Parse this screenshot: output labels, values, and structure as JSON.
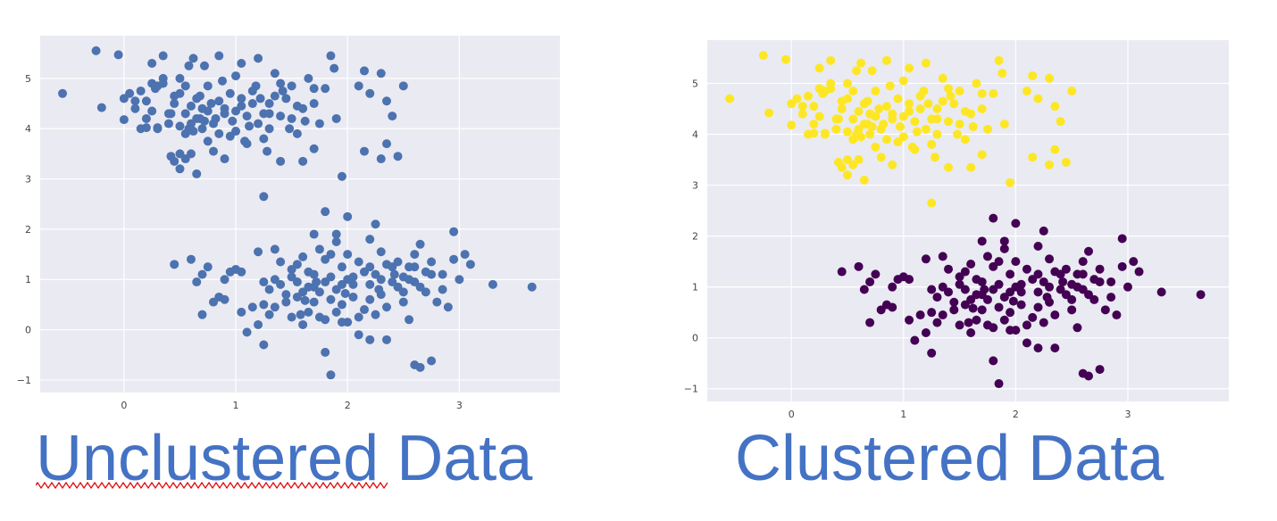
{
  "captions": {
    "left": "Unclustered Data",
    "right": "Clustered Data"
  },
  "colors": {
    "unclustered": "#4c72b0",
    "cluster_a": "#fde725",
    "cluster_b": "#440154",
    "plot_bg": "#eaeaf2",
    "grid": "#ffffff",
    "caption": "#4472c4",
    "spellcheck": "#e00000"
  },
  "chart_data": [
    {
      "type": "scatter",
      "title": "",
      "xlabel": "",
      "ylabel": "",
      "xlim": [
        -0.75,
        3.9
      ],
      "ylim": [
        -1.25,
        5.85
      ],
      "xticks": [
        0,
        1,
        2,
        3
      ],
      "yticks": [
        -1,
        0,
        1,
        2,
        3,
        4,
        5
      ],
      "tick_labels_x": [
        "0",
        "1",
        "2",
        "3"
      ],
      "tick_labels_y": [
        "−1",
        "0",
        "1",
        "2",
        "3",
        "4",
        "5"
      ],
      "grid": true,
      "series": [
        {
          "color": "#4c72b0",
          "points": [
            [
              -0.55,
              4.7
            ],
            [
              -0.25,
              5.55
            ],
            [
              -0.2,
              4.42
            ],
            [
              -0.05,
              5.47
            ],
            [
              0.0,
              4.18
            ],
            [
              0.0,
              4.6
            ],
            [
              0.05,
              4.7
            ],
            [
              0.1,
              4.4
            ],
            [
              0.1,
              4.55
            ],
            [
              0.15,
              4.0
            ],
            [
              0.2,
              4.02
            ],
            [
              0.2,
              4.2
            ],
            [
              0.2,
              4.55
            ],
            [
              0.25,
              5.3
            ],
            [
              0.25,
              4.9
            ],
            [
              0.28,
              4.8
            ],
            [
              0.3,
              4.85
            ],
            [
              0.3,
              4.02
            ],
            [
              0.3,
              4.0
            ],
            [
              0.35,
              5.45
            ],
            [
              0.35,
              4.9
            ],
            [
              0.4,
              4.3
            ],
            [
              0.4,
              4.1
            ],
            [
              0.42,
              3.45
            ],
            [
              0.45,
              3.35
            ],
            [
              0.45,
              4.5
            ],
            [
              0.5,
              5.0
            ],
            [
              0.5,
              4.7
            ],
            [
              0.5,
              4.05
            ],
            [
              0.5,
              3.2
            ],
            [
              0.55,
              3.4
            ],
            [
              0.55,
              4.3
            ],
            [
              0.55,
              3.9
            ],
            [
              0.58,
              5.25
            ],
            [
              0.6,
              4.45
            ],
            [
              0.6,
              4.1
            ],
            [
              0.6,
              3.5
            ],
            [
              0.62,
              5.4
            ],
            [
              0.65,
              4.6
            ],
            [
              0.65,
              4.2
            ],
            [
              0.65,
              3.1
            ],
            [
              0.7,
              4.4
            ],
            [
              0.7,
              4.0
            ],
            [
              0.72,
              5.25
            ],
            [
              0.75,
              4.85
            ],
            [
              0.75,
              4.35
            ],
            [
              0.8,
              4.1
            ],
            [
              0.8,
              3.55
            ],
            [
              0.85,
              5.45
            ],
            [
              0.85,
              4.55
            ],
            [
              0.9,
              4.3
            ],
            [
              0.9,
              3.4
            ],
            [
              0.95,
              4.7
            ],
            [
              1.0,
              5.05
            ],
            [
              1.0,
              4.35
            ],
            [
              1.0,
              3.95
            ],
            [
              1.05,
              5.3
            ],
            [
              1.05,
              4.6
            ],
            [
              1.1,
              4.25
            ],
            [
              1.1,
              3.7
            ],
            [
              1.15,
              4.75
            ],
            [
              1.15,
              4.5
            ],
            [
              1.2,
              5.4
            ],
            [
              1.2,
              4.1
            ],
            [
              1.25,
              4.3
            ],
            [
              1.25,
              3.8
            ],
            [
              1.3,
              4.5
            ],
            [
              1.3,
              4.0
            ],
            [
              1.35,
              5.1
            ],
            [
              1.35,
              4.65
            ],
            [
              1.4,
              4.25
            ],
            [
              1.4,
              3.35
            ],
            [
              1.45,
              4.6
            ],
            [
              1.5,
              4.85
            ],
            [
              1.5,
              4.2
            ],
            [
              1.55,
              3.9
            ],
            [
              1.6,
              4.4
            ],
            [
              1.65,
              5.0
            ],
            [
              1.7,
              4.5
            ],
            [
              1.7,
              3.6
            ],
            [
              1.75,
              4.1
            ],
            [
              1.8,
              4.8
            ],
            [
              1.85,
              5.45
            ],
            [
              1.88,
              5.2
            ],
            [
              1.9,
              4.2
            ],
            [
              1.95,
              3.05
            ],
            [
              2.1,
              4.85
            ],
            [
              2.15,
              5.15
            ],
            [
              2.2,
              4.7
            ],
            [
              2.3,
              5.1
            ],
            [
              2.35,
              3.7
            ],
            [
              2.4,
              4.25
            ],
            [
              2.45,
              3.45
            ],
            [
              2.5,
              4.85
            ],
            [
              1.25,
              2.65
            ],
            [
              0.9,
              4.4
            ],
            [
              0.45,
              4.65
            ],
            [
              0.75,
              3.75
            ],
            [
              1.12,
              4.05
            ],
            [
              0.35,
              5.0
            ],
            [
              0.55,
              4.85
            ],
            [
              0.68,
              4.65
            ],
            [
              0.82,
              4.2
            ],
            [
              0.95,
              3.85
            ],
            [
              1.05,
              4.45
            ],
            [
              1.22,
              4.6
            ],
            [
              1.3,
              4.3
            ],
            [
              1.42,
              4.75
            ],
            [
              1.62,
              4.15
            ],
            [
              0.25,
              4.35
            ],
            [
              0.15,
              4.75
            ],
            [
              0.62,
              3.95
            ],
            [
              0.72,
              4.15
            ],
            [
              0.88,
              4.95
            ],
            [
              1.18,
              4.85
            ],
            [
              1.4,
              4.9
            ],
            [
              1.55,
              4.45
            ],
            [
              1.7,
              4.8
            ],
            [
              2.15,
              3.55
            ],
            [
              2.35,
              4.55
            ],
            [
              0.5,
              3.5
            ],
            [
              0.78,
              4.5
            ],
            [
              1.08,
              3.75
            ],
            [
              1.28,
              3.55
            ],
            [
              0.58,
              4.0
            ],
            [
              0.42,
              4.3
            ],
            [
              0.68,
              4.2
            ],
            [
              0.97,
              4.15
            ],
            [
              1.6,
              3.35
            ],
            [
              2.3,
              3.4
            ],
            [
              0.85,
              3.9
            ],
            [
              1.48,
              4.0
            ]
          ]
        },
        {
          "color": "#4c72b0",
          "points": [
            [
              0.45,
              1.3
            ],
            [
              0.6,
              1.4
            ],
            [
              0.65,
              0.95
            ],
            [
              0.7,
              1.1
            ],
            [
              0.75,
              1.25
            ],
            [
              0.7,
              0.3
            ],
            [
              0.8,
              0.55
            ],
            [
              0.85,
              0.65
            ],
            [
              0.9,
              0.6
            ],
            [
              0.95,
              1.15
            ],
            [
              1.0,
              1.2
            ],
            [
              1.05,
              1.15
            ],
            [
              1.05,
              0.35
            ],
            [
              1.1,
              -0.05
            ],
            [
              1.15,
              0.45
            ],
            [
              1.2,
              0.1
            ],
            [
              1.25,
              0.5
            ],
            [
              1.25,
              -0.3
            ],
            [
              1.3,
              0.8
            ],
            [
              1.3,
              0.3
            ],
            [
              1.35,
              1.6
            ],
            [
              1.35,
              1.0
            ],
            [
              1.4,
              1.35
            ],
            [
              1.45,
              0.7
            ],
            [
              1.5,
              0.25
            ],
            [
              1.5,
              1.2
            ],
            [
              1.55,
              0.65
            ],
            [
              1.55,
              0.95
            ],
            [
              1.6,
              1.45
            ],
            [
              1.6,
              0.1
            ],
            [
              1.65,
              0.85
            ],
            [
              1.65,
              0.35
            ],
            [
              1.7,
              1.9
            ],
            [
              1.7,
              1.1
            ],
            [
              1.7,
              0.55
            ],
            [
              1.75,
              0.75
            ],
            [
              1.75,
              0.25
            ],
            [
              1.8,
              1.4
            ],
            [
              1.8,
              0.95
            ],
            [
              1.8,
              -0.45
            ],
            [
              1.85,
              0.6
            ],
            [
              1.85,
              -0.9
            ],
            [
              1.9,
              1.75
            ],
            [
              1.9,
              0.8
            ],
            [
              1.9,
              0.35
            ],
            [
              1.95,
              1.25
            ],
            [
              1.95,
              0.5
            ],
            [
              2.0,
              1.0
            ],
            [
              2.0,
              2.25
            ],
            [
              2.05,
              0.65
            ],
            [
              2.1,
              1.35
            ],
            [
              2.1,
              -0.1
            ],
            [
              2.15,
              0.4
            ],
            [
              2.2,
              1.8
            ],
            [
              2.2,
              0.9
            ],
            [
              2.2,
              -0.2
            ],
            [
              2.25,
              1.1
            ],
            [
              2.25,
              0.3
            ],
            [
              2.3,
              1.55
            ],
            [
              2.3,
              0.7
            ],
            [
              2.35,
              -0.2
            ],
            [
              2.4,
              1.25
            ],
            [
              2.45,
              0.85
            ],
            [
              2.5,
              0.55
            ],
            [
              2.5,
              1.05
            ],
            [
              2.55,
              0.2
            ],
            [
              2.6,
              1.5
            ],
            [
              2.6,
              0.95
            ],
            [
              2.6,
              -0.7
            ],
            [
              2.65,
              1.7
            ],
            [
              2.65,
              -0.75
            ],
            [
              2.7,
              0.75
            ],
            [
              2.75,
              1.35
            ],
            [
              2.75,
              -0.62
            ],
            [
              2.8,
              0.55
            ],
            [
              2.85,
              0.8
            ],
            [
              2.9,
              0.45
            ],
            [
              2.95,
              1.4
            ],
            [
              3.0,
              1.0
            ],
            [
              3.05,
              1.5
            ],
            [
              3.1,
              1.3
            ],
            [
              3.3,
              0.9
            ],
            [
              3.65,
              0.85
            ],
            [
              1.8,
              2.35
            ],
            [
              2.25,
              2.1
            ],
            [
              2.0,
              1.5
            ],
            [
              1.2,
              1.55
            ],
            [
              1.9,
              1.9
            ],
            [
              1.55,
              1.3
            ],
            [
              1.6,
              0.75
            ],
            [
              2.0,
              0.15
            ],
            [
              2.4,
              0.95
            ],
            [
              2.7,
              1.15
            ],
            [
              2.95,
              1.95
            ],
            [
              1.45,
              0.55
            ],
            [
              1.75,
              1.6
            ],
            [
              2.35,
              0.45
            ],
            [
              2.55,
              1.25
            ],
            [
              2.15,
              1.15
            ],
            [
              1.35,
              0.45
            ],
            [
              2.85,
              1.1
            ],
            [
              2.45,
              1.35
            ],
            [
              1.85,
              1.05
            ],
            [
              1.95,
              0.15
            ],
            [
              2.05,
              0.9
            ],
            [
              1.65,
              1.15
            ],
            [
              2.5,
              0.75
            ],
            [
              2.55,
              1.0
            ],
            [
              2.3,
              1.0
            ],
            [
              1.4,
              0.9
            ],
            [
              2.2,
              0.6
            ],
            [
              1.7,
              0.85
            ],
            [
              2.1,
              0.25
            ],
            [
              1.5,
              1.05
            ],
            [
              2.65,
              0.85
            ],
            [
              1.8,
              0.2
            ],
            [
              2.75,
              1.1
            ],
            [
              1.25,
              0.95
            ],
            [
              2.35,
              1.3
            ],
            [
              1.95,
              0.9
            ],
            [
              1.58,
              0.3
            ],
            [
              2.42,
              1.1
            ],
            [
              0.9,
              1.0
            ],
            [
              1.85,
              1.5
            ],
            [
              2.05,
              1.05
            ],
            [
              2.28,
              0.8
            ],
            [
              1.72,
              0.95
            ],
            [
              2.6,
              1.25
            ],
            [
              2.2,
              1.25
            ],
            [
              1.62,
              0.58
            ],
            [
              1.98,
              0.72
            ]
          ]
        }
      ]
    },
    {
      "type": "scatter",
      "title": "",
      "xlabel": "",
      "ylabel": "",
      "xlim": [
        -0.75,
        3.9
      ],
      "ylim": [
        -1.25,
        5.85
      ],
      "xticks": [
        0,
        1,
        2,
        3
      ],
      "yticks": [
        -1,
        0,
        1,
        2,
        3,
        4,
        5
      ],
      "tick_labels_x": [
        "0",
        "1",
        "2",
        "3"
      ],
      "tick_labels_y": [
        "−1",
        "0",
        "1",
        "2",
        "3",
        "4",
        "5"
      ],
      "grid": true,
      "series": [
        {
          "color": "#fde725",
          "points": "same as chart 1 series 1"
        },
        {
          "color": "#440154",
          "points": "same as chart 1 series 2"
        }
      ]
    }
  ]
}
